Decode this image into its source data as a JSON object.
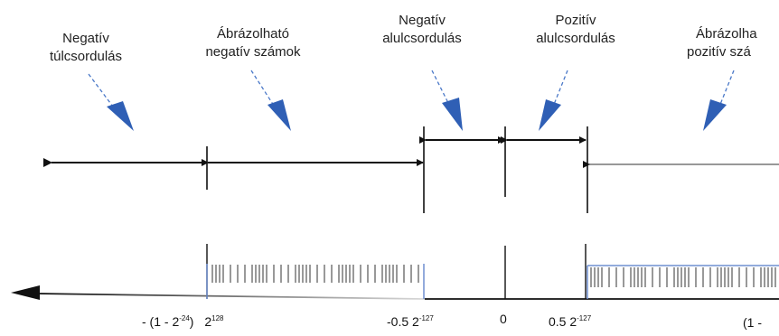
{
  "regions": {
    "negative_overflow": [
      "Negatív",
      "túlcsordulás"
    ],
    "negative_representable": [
      "Ábrázolható",
      "negatív számok"
    ],
    "negative_underflow": [
      "Negatív",
      "alulcsordulás"
    ],
    "positive_underflow": [
      "Pozitív",
      "alulcsordulás"
    ],
    "positive_representable": [
      "Ábrázolha",
      "pozitív szá"
    ]
  },
  "axis_labels": {
    "neg_max_prefix": "- (1 - 2",
    "neg_max_exp": "-24",
    "neg_max_paren": ")",
    "neg_max_base": "2",
    "neg_max_base_exp": "128",
    "neg_min": "-0.5 2",
    "neg_min_exp": "-127",
    "zero": "0",
    "pos_min": "0.5 2",
    "pos_min_exp": "-127",
    "pos_max_partial": "(1 -"
  },
  "colors": {
    "arrow_blue": "#2f5fb5",
    "dashed_blue": "#4a78c8",
    "line": "#111111",
    "region_edge": "#6f8fd0"
  }
}
